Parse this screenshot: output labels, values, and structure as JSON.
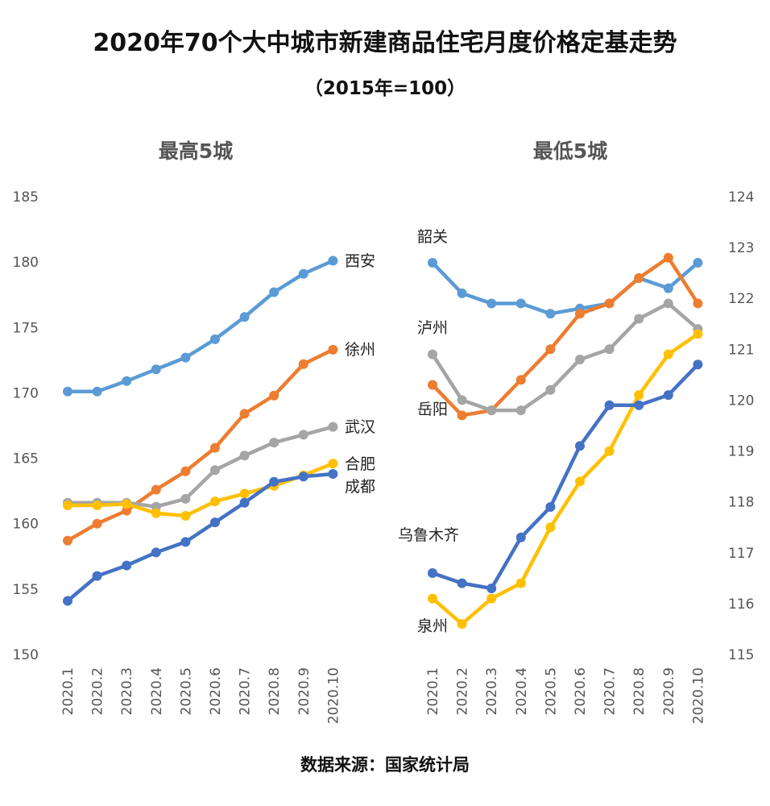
{
  "title": "2020年70个大中城市新建商品住宅月度价格定基走势",
  "subtitle": "（2015年=100）",
  "source": "数据来源：国家统计局",
  "colors": {
    "blue_light": "#5B9BD5",
    "orange": "#ED7D31",
    "gray": "#A5A5A5",
    "yellow": "#FFC000",
    "blue_dark": "#4472C4"
  },
  "chart_data": [
    {
      "type": "line",
      "title": "最高5城",
      "categories": [
        "2020.1",
        "2020.2",
        "2020.3",
        "2020.4",
        "2020.5",
        "2020.6",
        "2020.7",
        "2020.8",
        "2020.9",
        "2020.10"
      ],
      "ylim": [
        150,
        185
      ],
      "yticks": [
        150,
        155,
        160,
        165,
        170,
        175,
        180,
        185
      ],
      "series": [
        {
          "name": "西安",
          "color": "#5B9BD5",
          "values": [
            170.1,
            170.1,
            170.9,
            171.8,
            172.7,
            174.1,
            175.8,
            177.7,
            179.1,
            180.1
          ]
        },
        {
          "name": "徐州",
          "color": "#ED7D31",
          "values": [
            158.7,
            160.0,
            161.0,
            162.6,
            164.0,
            165.8,
            168.4,
            169.8,
            172.2,
            173.3
          ]
        },
        {
          "name": "武汉",
          "color": "#A5A5A5",
          "values": [
            161.6,
            161.6,
            161.6,
            161.3,
            161.9,
            164.1,
            165.2,
            166.2,
            166.8,
            167.4
          ]
        },
        {
          "name": "合肥",
          "color": "#FFC000",
          "values": [
            161.4,
            161.4,
            161.5,
            160.8,
            160.6,
            161.7,
            162.3,
            162.9,
            163.7,
            164.6
          ]
        },
        {
          "name": "成都",
          "color": "#4472C4",
          "values": [
            154.1,
            156.0,
            156.8,
            157.8,
            158.6,
            160.1,
            161.6,
            163.2,
            163.6,
            163.8
          ]
        }
      ]
    },
    {
      "type": "line",
      "title": "最低5城",
      "categories": [
        "2020.1",
        "2020.2",
        "2020.3",
        "2020.4",
        "2020.5",
        "2020.6",
        "2020.7",
        "2020.8",
        "2020.9",
        "2020.10"
      ],
      "ylim": [
        115,
        124
      ],
      "yticks": [
        115,
        116,
        117,
        118,
        119,
        120,
        121,
        122,
        123,
        124
      ],
      "series": [
        {
          "name": "韶关",
          "color": "#5B9BD5",
          "values": [
            122.7,
            122.1,
            121.9,
            121.9,
            121.7,
            121.8,
            121.9,
            122.4,
            122.2,
            122.7
          ]
        },
        {
          "name": "岳阳",
          "color": "#ED7D31",
          "values": [
            120.3,
            119.7,
            119.8,
            120.4,
            121.0,
            121.7,
            121.9,
            122.4,
            122.8,
            121.9
          ]
        },
        {
          "name": "泸州",
          "color": "#A5A5A5",
          "values": [
            120.9,
            120.0,
            119.8,
            119.8,
            120.2,
            120.8,
            121.0,
            121.6,
            121.9,
            121.4
          ]
        },
        {
          "name": "泉州",
          "color": "#FFC000",
          "values": [
            116.1,
            115.6,
            116.1,
            116.4,
            117.5,
            118.4,
            119.0,
            120.1,
            120.9,
            121.3
          ]
        },
        {
          "name": "乌鲁木齐",
          "color": "#4472C4",
          "values": [
            116.6,
            116.4,
            116.3,
            117.3,
            117.9,
            119.1,
            119.9,
            119.9,
            120.1,
            120.7
          ]
        }
      ]
    }
  ]
}
